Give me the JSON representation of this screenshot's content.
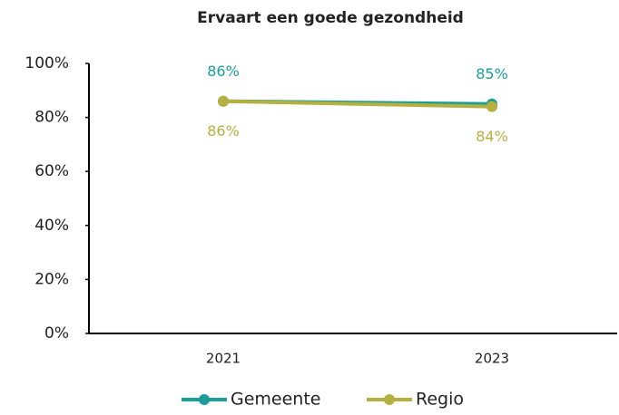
{
  "chart_data": {
    "type": "line",
    "title": "Ervaart een goede gezondheid",
    "categories": [
      "2021",
      "2023"
    ],
    "series": [
      {
        "name": "Gemeente",
        "color": "#1a9e9a",
        "values": [
          86,
          85
        ],
        "value_labels": [
          "86%",
          "85%"
        ]
      },
      {
        "name": "Regio",
        "color": "#b5b040",
        "values": [
          86,
          84
        ],
        "value_labels": [
          "86%",
          "84%"
        ]
      }
    ],
    "ylim": [
      0,
      100
    ],
    "yticks": [
      {
        "value": 0,
        "label": "0%"
      },
      {
        "value": 20,
        "label": "20%"
      },
      {
        "value": 40,
        "label": "40%"
      },
      {
        "value": 60,
        "label": "60%"
      },
      {
        "value": 80,
        "label": "80%"
      },
      {
        "value": 100,
        "label": "100%"
      }
    ],
    "legend": "bottom"
  }
}
